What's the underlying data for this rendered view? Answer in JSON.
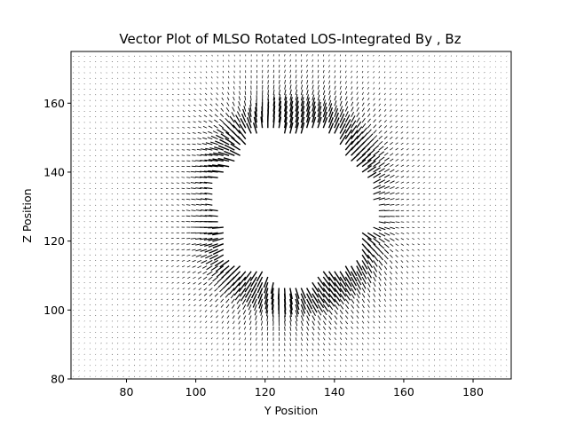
{
  "chart_data": {
    "type": "quiver",
    "title": "Vector Plot of MLSO Rotated LOS-Integrated By , Bz",
    "xlabel": "Y Position",
    "ylabel": "Z Position",
    "xlim": [
      64,
      191
    ],
    "ylim": [
      80,
      175
    ],
    "xticks": [
      80,
      100,
      120,
      140,
      160,
      180
    ],
    "yticks": [
      80,
      100,
      120,
      140,
      160
    ],
    "grid": false,
    "arrow_color": "#000000",
    "field": {
      "grid_step": 1.6,
      "occulter_center": [
        128,
        130
      ],
      "occulter_radius": 22,
      "bright_ring_radius": 30,
      "bulge_center": [
        148,
        128
      ],
      "bulge_radius": 4.5,
      "description_units": "data units (pixels of the integrated image)"
    }
  }
}
